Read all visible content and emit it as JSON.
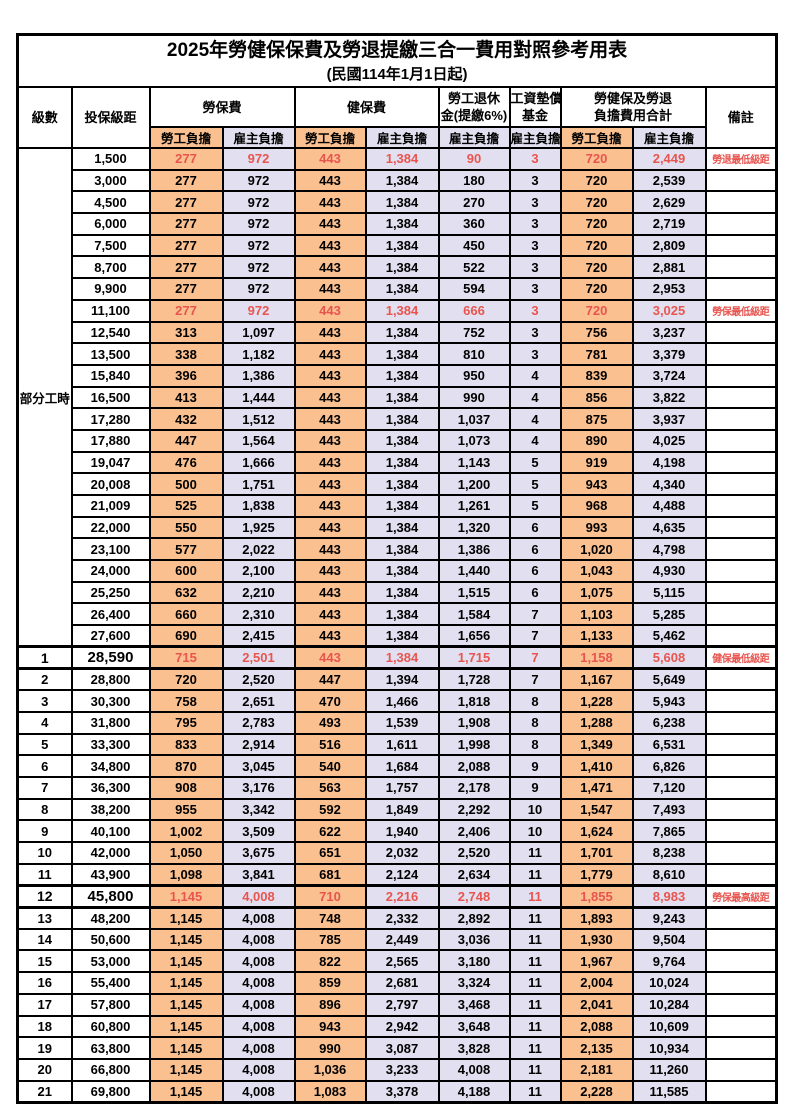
{
  "page": {
    "title": "2025年勞健保保費及勞退提繳三合一費用對照參考用表",
    "subtitle": "(民國114年1月1日起)"
  },
  "columns": {
    "level": "級數",
    "bracket": "投保級距",
    "labor_insurance": "勞保費",
    "health_insurance": "健保費",
    "pension_line1": "勞工退休",
    "pension_line2": "金(提繳6%)",
    "wage_fund_line1": "工資墊償",
    "wage_fund_line2": "基金",
    "total_line1": "勞健保及勞退",
    "total_line2": "負擔費用合計",
    "remark": "備註",
    "worker": "勞工負擔",
    "employer": "雇主負擔"
  },
  "part_time_label": "部分工時",
  "part_time_rowspan": 23,
  "colors": {
    "worker_bg": "#FAC090",
    "employer_bg": "#E2E0F0",
    "highlight_text": "#E8554F"
  },
  "rows": [
    {
      "level": "",
      "bracket": "1,500",
      "values": [
        "277",
        "972",
        "443",
        "1,384",
        "90",
        "3",
        "720",
        "2,449"
      ],
      "remark": "勞退最低級距",
      "highlight": true,
      "emphasis": false
    },
    {
      "level": "",
      "bracket": "3,000",
      "values": [
        "277",
        "972",
        "443",
        "1,384",
        "180",
        "3",
        "720",
        "2,539"
      ],
      "remark": "",
      "highlight": false,
      "emphasis": false
    },
    {
      "level": "",
      "bracket": "4,500",
      "values": [
        "277",
        "972",
        "443",
        "1,384",
        "270",
        "3",
        "720",
        "2,629"
      ],
      "remark": "",
      "highlight": false,
      "emphasis": false
    },
    {
      "level": "",
      "bracket": "6,000",
      "values": [
        "277",
        "972",
        "443",
        "1,384",
        "360",
        "3",
        "720",
        "2,719"
      ],
      "remark": "",
      "highlight": false,
      "emphasis": false
    },
    {
      "level": "",
      "bracket": "7,500",
      "values": [
        "277",
        "972",
        "443",
        "1,384",
        "450",
        "3",
        "720",
        "2,809"
      ],
      "remark": "",
      "highlight": false,
      "emphasis": false
    },
    {
      "level": "",
      "bracket": "8,700",
      "values": [
        "277",
        "972",
        "443",
        "1,384",
        "522",
        "3",
        "720",
        "2,881"
      ],
      "remark": "",
      "highlight": false,
      "emphasis": false
    },
    {
      "level": "",
      "bracket": "9,900",
      "values": [
        "277",
        "972",
        "443",
        "1,384",
        "594",
        "3",
        "720",
        "2,953"
      ],
      "remark": "",
      "highlight": false,
      "emphasis": false
    },
    {
      "level": "",
      "bracket": "11,100",
      "values": [
        "277",
        "972",
        "443",
        "1,384",
        "666",
        "3",
        "720",
        "3,025"
      ],
      "remark": "勞保最低級距",
      "highlight": true,
      "emphasis": false
    },
    {
      "level": "",
      "bracket": "12,540",
      "values": [
        "313",
        "1,097",
        "443",
        "1,384",
        "752",
        "3",
        "756",
        "3,237"
      ],
      "remark": "",
      "highlight": false,
      "emphasis": false
    },
    {
      "level": "",
      "bracket": "13,500",
      "values": [
        "338",
        "1,182",
        "443",
        "1,384",
        "810",
        "3",
        "781",
        "3,379"
      ],
      "remark": "",
      "highlight": false,
      "emphasis": false
    },
    {
      "level": "",
      "bracket": "15,840",
      "values": [
        "396",
        "1,386",
        "443",
        "1,384",
        "950",
        "4",
        "839",
        "3,724"
      ],
      "remark": "",
      "highlight": false,
      "emphasis": false
    },
    {
      "level": "",
      "bracket": "16,500",
      "values": [
        "413",
        "1,444",
        "443",
        "1,384",
        "990",
        "4",
        "856",
        "3,822"
      ],
      "remark": "",
      "highlight": false,
      "emphasis": false
    },
    {
      "level": "",
      "bracket": "17,280",
      "values": [
        "432",
        "1,512",
        "443",
        "1,384",
        "1,037",
        "4",
        "875",
        "3,937"
      ],
      "remark": "",
      "highlight": false,
      "emphasis": false
    },
    {
      "level": "",
      "bracket": "17,880",
      "values": [
        "447",
        "1,564",
        "443",
        "1,384",
        "1,073",
        "4",
        "890",
        "4,025"
      ],
      "remark": "",
      "highlight": false,
      "emphasis": false
    },
    {
      "level": "",
      "bracket": "19,047",
      "values": [
        "476",
        "1,666",
        "443",
        "1,384",
        "1,143",
        "5",
        "919",
        "4,198"
      ],
      "remark": "",
      "highlight": false,
      "emphasis": false
    },
    {
      "level": "",
      "bracket": "20,008",
      "values": [
        "500",
        "1,751",
        "443",
        "1,384",
        "1,200",
        "5",
        "943",
        "4,340"
      ],
      "remark": "",
      "highlight": false,
      "emphasis": false
    },
    {
      "level": "",
      "bracket": "21,009",
      "values": [
        "525",
        "1,838",
        "443",
        "1,384",
        "1,261",
        "5",
        "968",
        "4,488"
      ],
      "remark": "",
      "highlight": false,
      "emphasis": false
    },
    {
      "level": "",
      "bracket": "22,000",
      "values": [
        "550",
        "1,925",
        "443",
        "1,384",
        "1,320",
        "6",
        "993",
        "4,635"
      ],
      "remark": "",
      "highlight": false,
      "emphasis": false
    },
    {
      "level": "",
      "bracket": "23,100",
      "values": [
        "577",
        "2,022",
        "443",
        "1,384",
        "1,386",
        "6",
        "1,020",
        "4,798"
      ],
      "remark": "",
      "highlight": false,
      "emphasis": false
    },
    {
      "level": "",
      "bracket": "24,000",
      "values": [
        "600",
        "2,100",
        "443",
        "1,384",
        "1,440",
        "6",
        "1,043",
        "4,930"
      ],
      "remark": "",
      "highlight": false,
      "emphasis": false
    },
    {
      "level": "",
      "bracket": "25,250",
      "values": [
        "632",
        "2,210",
        "443",
        "1,384",
        "1,515",
        "6",
        "1,075",
        "5,115"
      ],
      "remark": "",
      "highlight": false,
      "emphasis": false
    },
    {
      "level": "",
      "bracket": "26,400",
      "values": [
        "660",
        "2,310",
        "443",
        "1,384",
        "1,584",
        "7",
        "1,103",
        "5,285"
      ],
      "remark": "",
      "highlight": false,
      "emphasis": false
    },
    {
      "level": "",
      "bracket": "27,600",
      "values": [
        "690",
        "2,415",
        "443",
        "1,384",
        "1,656",
        "7",
        "1,133",
        "5,462"
      ],
      "remark": "",
      "highlight": false,
      "emphasis": false
    },
    {
      "level": "1",
      "bracket": "28,590",
      "values": [
        "715",
        "2,501",
        "443",
        "1,384",
        "1,715",
        "7",
        "1,158",
        "5,608"
      ],
      "remark": "健保最低級距",
      "highlight": true,
      "emphasis": true
    },
    {
      "level": "2",
      "bracket": "28,800",
      "values": [
        "720",
        "2,520",
        "447",
        "1,394",
        "1,728",
        "7",
        "1,167",
        "5,649"
      ],
      "remark": "",
      "highlight": false,
      "emphasis": false
    },
    {
      "level": "3",
      "bracket": "30,300",
      "values": [
        "758",
        "2,651",
        "470",
        "1,466",
        "1,818",
        "8",
        "1,228",
        "5,943"
      ],
      "remark": "",
      "highlight": false,
      "emphasis": false
    },
    {
      "level": "4",
      "bracket": "31,800",
      "values": [
        "795",
        "2,783",
        "493",
        "1,539",
        "1,908",
        "8",
        "1,288",
        "6,238"
      ],
      "remark": "",
      "highlight": false,
      "emphasis": false
    },
    {
      "level": "5",
      "bracket": "33,300",
      "values": [
        "833",
        "2,914",
        "516",
        "1,611",
        "1,998",
        "8",
        "1,349",
        "6,531"
      ],
      "remark": "",
      "highlight": false,
      "emphasis": false
    },
    {
      "level": "6",
      "bracket": "34,800",
      "values": [
        "870",
        "3,045",
        "540",
        "1,684",
        "2,088",
        "9",
        "1,410",
        "6,826"
      ],
      "remark": "",
      "highlight": false,
      "emphasis": false
    },
    {
      "level": "7",
      "bracket": "36,300",
      "values": [
        "908",
        "3,176",
        "563",
        "1,757",
        "2,178",
        "9",
        "1,471",
        "7,120"
      ],
      "remark": "",
      "highlight": false,
      "emphasis": false
    },
    {
      "level": "8",
      "bracket": "38,200",
      "values": [
        "955",
        "3,342",
        "592",
        "1,849",
        "2,292",
        "10",
        "1,547",
        "7,493"
      ],
      "remark": "",
      "highlight": false,
      "emphasis": false
    },
    {
      "level": "9",
      "bracket": "40,100",
      "values": [
        "1,002",
        "3,509",
        "622",
        "1,940",
        "2,406",
        "10",
        "1,624",
        "7,865"
      ],
      "remark": "",
      "highlight": false,
      "emphasis": false
    },
    {
      "level": "10",
      "bracket": "42,000",
      "values": [
        "1,050",
        "3,675",
        "651",
        "2,032",
        "2,520",
        "11",
        "1,701",
        "8,238"
      ],
      "remark": "",
      "highlight": false,
      "emphasis": false
    },
    {
      "level": "11",
      "bracket": "43,900",
      "values": [
        "1,098",
        "3,841",
        "681",
        "2,124",
        "2,634",
        "11",
        "1,779",
        "8,610"
      ],
      "remark": "",
      "highlight": false,
      "emphasis": false
    },
    {
      "level": "12",
      "bracket": "45,800",
      "values": [
        "1,145",
        "4,008",
        "710",
        "2,216",
        "2,748",
        "11",
        "1,855",
        "8,983"
      ],
      "remark": "勞保最高級距",
      "highlight": true,
      "emphasis": true
    },
    {
      "level": "13",
      "bracket": "48,200",
      "values": [
        "1,145",
        "4,008",
        "748",
        "2,332",
        "2,892",
        "11",
        "1,893",
        "9,243"
      ],
      "remark": "",
      "highlight": false,
      "emphasis": false
    },
    {
      "level": "14",
      "bracket": "50,600",
      "values": [
        "1,145",
        "4,008",
        "785",
        "2,449",
        "3,036",
        "11",
        "1,930",
        "9,504"
      ],
      "remark": "",
      "highlight": false,
      "emphasis": false
    },
    {
      "level": "15",
      "bracket": "53,000",
      "values": [
        "1,145",
        "4,008",
        "822",
        "2,565",
        "3,180",
        "11",
        "1,967",
        "9,764"
      ],
      "remark": "",
      "highlight": false,
      "emphasis": false
    },
    {
      "level": "16",
      "bracket": "55,400",
      "values": [
        "1,145",
        "4,008",
        "859",
        "2,681",
        "3,324",
        "11",
        "2,004",
        "10,024"
      ],
      "remark": "",
      "highlight": false,
      "emphasis": false
    },
    {
      "level": "17",
      "bracket": "57,800",
      "values": [
        "1,145",
        "4,008",
        "896",
        "2,797",
        "3,468",
        "11",
        "2,041",
        "10,284"
      ],
      "remark": "",
      "highlight": false,
      "emphasis": false
    },
    {
      "level": "18",
      "bracket": "60,800",
      "values": [
        "1,145",
        "4,008",
        "943",
        "2,942",
        "3,648",
        "11",
        "2,088",
        "10,609"
      ],
      "remark": "",
      "highlight": false,
      "emphasis": false
    },
    {
      "level": "19",
      "bracket": "63,800",
      "values": [
        "1,145",
        "4,008",
        "990",
        "3,087",
        "3,828",
        "11",
        "2,135",
        "10,934"
      ],
      "remark": "",
      "highlight": false,
      "emphasis": false
    },
    {
      "level": "20",
      "bracket": "66,800",
      "values": [
        "1,145",
        "4,008",
        "1,036",
        "3,233",
        "4,008",
        "11",
        "2,181",
        "11,260"
      ],
      "remark": "",
      "highlight": false,
      "emphasis": false
    },
    {
      "level": "21",
      "bracket": "69,800",
      "values": [
        "1,145",
        "4,008",
        "1,083",
        "3,378",
        "4,188",
        "11",
        "2,228",
        "11,585"
      ],
      "remark": "",
      "highlight": false,
      "emphasis": false
    }
  ]
}
